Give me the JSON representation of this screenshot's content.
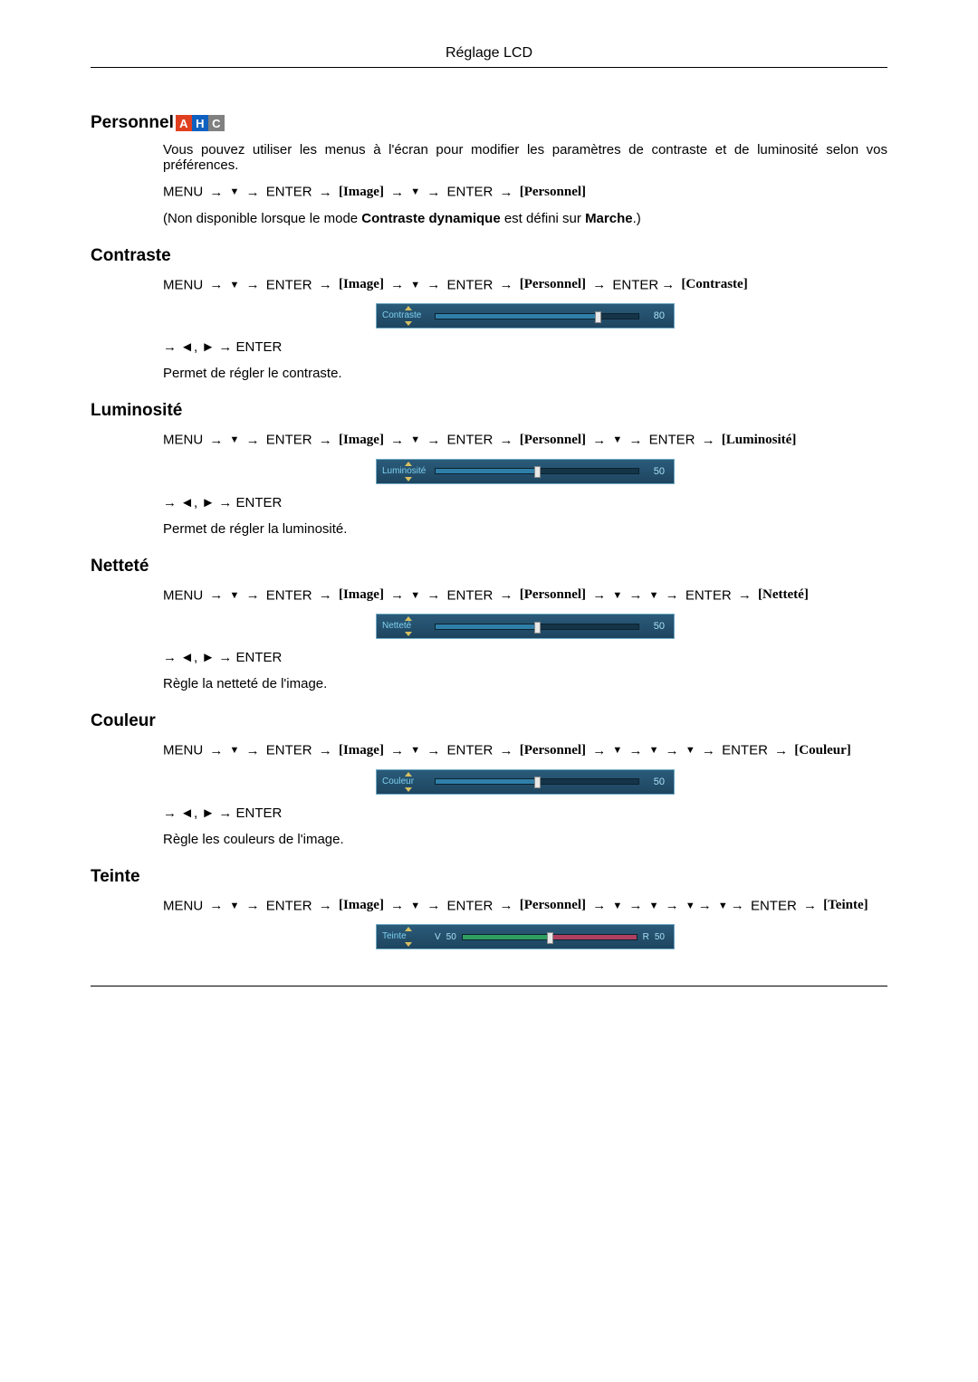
{
  "header": {
    "title": "Réglage LCD"
  },
  "badges": {
    "a": "A",
    "h": "H",
    "c": "C"
  },
  "nav_tokens": {
    "menu": "MENU",
    "enter": "ENTER",
    "image": "Image",
    "personnel": "Personnel",
    "contraste": "Contraste",
    "luminosite": "Luminosité",
    "nettete": "Netteté",
    "couleur": "Couleur",
    "teinte": "Teinte"
  },
  "arrows": {
    "right": "→",
    "down": "▼",
    "left": "◄",
    "right_solid": "►",
    "comma": ","
  },
  "common": {
    "adjust_nav_prefix": "→ ◄, ► → ENTER"
  },
  "sections": {
    "personnel": {
      "title": "Personnel",
      "intro": "Vous pouvez utiliser les menus à l'écran pour modifier les paramètres de contraste et de luminosité selon vos préférences.",
      "note_pre": "(Non disponible lorsque le mode ",
      "note_bold1": "Contraste dynamique",
      "note_mid": " est défini sur ",
      "note_bold2": "Marche",
      "note_post": ".)"
    },
    "contraste": {
      "title": "Contraste",
      "slider": {
        "label": "Contraste",
        "value": 80,
        "pct": 80,
        "bg": "#216282",
        "fill": "#2f7fa8"
      },
      "desc": "Permet de régler le contraste."
    },
    "luminosite": {
      "title": "Luminosité",
      "slider": {
        "label": "Luminosité",
        "value": 50,
        "pct": 50,
        "bg": "#216282",
        "fill": "#2f7fa8"
      },
      "desc": "Permet de régler la luminosité."
    },
    "nettete": {
      "title": "Netteté",
      "slider": {
        "label": "Netteté",
        "value": 50,
        "pct": 50,
        "bg": "#216282",
        "fill": "#2f7fa8"
      },
      "desc": "Règle la netteté de l'image."
    },
    "couleur": {
      "title": "Couleur",
      "slider": {
        "label": "Couleur",
        "value": 50,
        "pct": 50,
        "bg": "#216282",
        "fill": "#2f7fa8"
      },
      "desc": "Règle les couleurs de l'image."
    },
    "teinte": {
      "title": "Teinte",
      "slider": {
        "label": "Teinte",
        "left_tag": "V",
        "left_val": 50,
        "right_tag": "R",
        "right_val": 50,
        "pct": 50,
        "left_color": "#2f9f60",
        "right_color": "#b04060"
      }
    }
  }
}
